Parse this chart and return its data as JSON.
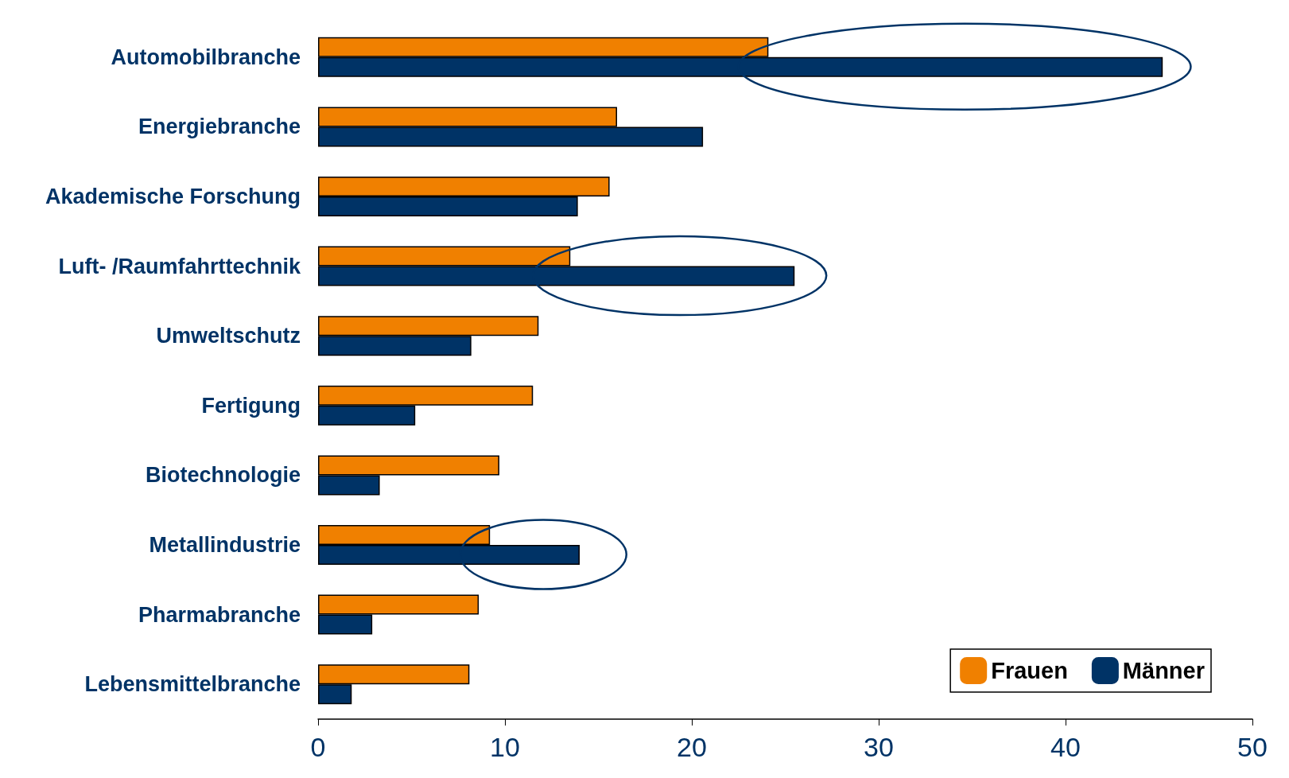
{
  "chart_data": {
    "type": "bar",
    "orientation": "horizontal",
    "categories": [
      "Automobilbranche",
      "Energiebranche",
      "Akademische Forschung",
      "Luft- /Raumfahrttechnik",
      "Umweltschutz",
      "Fertigung",
      "Biotechnologie",
      "Metallindustrie",
      "Pharmabranche",
      "Lebensmittelbranche"
    ],
    "series": [
      {
        "name": "Frauen",
        "color": "#f08000",
        "values": [
          24.1,
          16.0,
          15.6,
          13.5,
          11.8,
          11.5,
          9.7,
          9.2,
          8.6,
          8.1
        ]
      },
      {
        "name": "Männer",
        "color": "#003366",
        "values": [
          45.2,
          20.6,
          13.9,
          25.5,
          8.2,
          5.2,
          3.3,
          14.0,
          2.9,
          1.8
        ]
      }
    ],
    "xlim": [
      0,
      50
    ],
    "xticks": [
      0,
      10,
      20,
      30,
      40,
      50
    ],
    "grid": false,
    "legend": "bottom right"
  }
}
